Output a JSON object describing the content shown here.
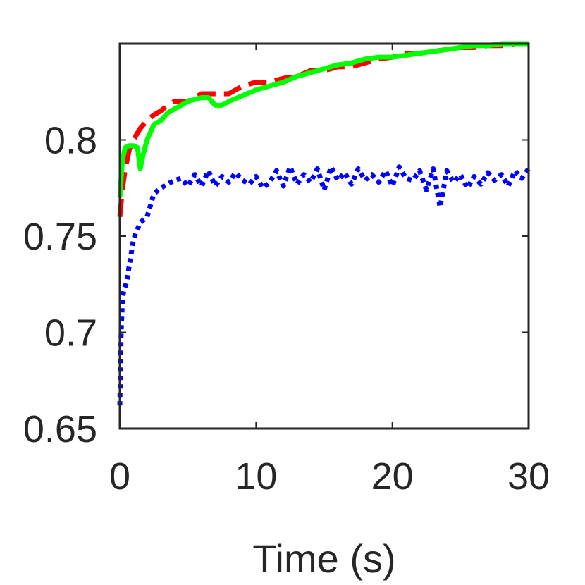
{
  "chart_data": {
    "type": "line",
    "title": "",
    "xlabel": "Time (s)",
    "ylabel": "",
    "xlim": [
      0,
      30
    ],
    "ylim": [
      0.65,
      0.85
    ],
    "xticks": [
      0,
      10,
      20,
      30
    ],
    "xtick_labels": [
      "0",
      "10",
      "20",
      "30"
    ],
    "yticks": [
      0.65,
      0.7,
      0.75,
      0.8
    ],
    "ytick_labels": [
      "0.65",
      "0.7",
      "0.75",
      "0.8"
    ],
    "grid": false,
    "box": true,
    "series": [
      {
        "color": "#ff0000",
        "style": "dashed",
        "x": [
          0,
          0.2,
          0.4,
          0.7,
          1.0,
          1.5,
          2.0,
          2.5,
          3.0,
          3.5,
          4.0,
          5.0,
          6.0,
          7.0,
          8.0,
          9.0,
          10.0,
          11.0,
          12.0,
          13.0,
          14.0,
          15.0,
          16.0,
          17.0,
          18.0,
          19.0,
          20.0,
          21.0,
          22.0,
          23.0,
          24.0,
          25.0,
          26.0,
          27.0,
          28.0,
          29.0,
          30.0
        ],
        "y": [
          0.76,
          0.775,
          0.785,
          0.795,
          0.8,
          0.806,
          0.81,
          0.813,
          0.815,
          0.818,
          0.82,
          0.82,
          0.824,
          0.824,
          0.824,
          0.828,
          0.83,
          0.83,
          0.832,
          0.833,
          0.836,
          0.836,
          0.838,
          0.838,
          0.84,
          0.842,
          0.843,
          0.845,
          0.845,
          0.846,
          0.847,
          0.848,
          0.848,
          0.849,
          0.849,
          0.85,
          0.85
        ]
      },
      {
        "color": "#00ff00",
        "style": "solid",
        "x": [
          0,
          0.2,
          0.4,
          0.7,
          1.0,
          1.3,
          1.5,
          1.7,
          2.0,
          2.5,
          3.0,
          3.5,
          4.0,
          5.0,
          6.0,
          6.5,
          7.0,
          7.5,
          8.0,
          9.0,
          10.0,
          11.0,
          12.0,
          13.0,
          14.0,
          15.0,
          16.0,
          17.0,
          18.0,
          19.0,
          20.0,
          21.0,
          22.0,
          23.0,
          24.0,
          25.0,
          26.0,
          27.0,
          28.0,
          29.0,
          30.0
        ],
        "y": [
          0.77,
          0.79,
          0.796,
          0.797,
          0.797,
          0.796,
          0.785,
          0.792,
          0.8,
          0.808,
          0.81,
          0.814,
          0.816,
          0.82,
          0.822,
          0.822,
          0.818,
          0.818,
          0.82,
          0.823,
          0.826,
          0.828,
          0.83,
          0.833,
          0.835,
          0.837,
          0.839,
          0.84,
          0.842,
          0.843,
          0.843,
          0.844,
          0.845,
          0.846,
          0.847,
          0.848,
          0.849,
          0.849,
          0.85,
          0.85,
          0.85
        ]
      },
      {
        "color": "#0000ff",
        "style": "dotted",
        "x": [
          0,
          0.1,
          0.2,
          0.3,
          0.5,
          0.7,
          1.0,
          1.2,
          1.5,
          2.0,
          2.5,
          3.0,
          3.5,
          4.0,
          4.5,
          5.0,
          5.5,
          6.0,
          6.5,
          7.0,
          7.5,
          8.0,
          8.5,
          9.0,
          9.5,
          10.0,
          10.5,
          11.0,
          11.5,
          12.0,
          12.5,
          13.0,
          13.5,
          14.0,
          14.5,
          15.0,
          15.5,
          16.0,
          16.5,
          17.0,
          17.5,
          18.0,
          18.5,
          19.0,
          19.5,
          20.0,
          20.5,
          21.0,
          21.5,
          22.0,
          22.5,
          23.0,
          23.5,
          24.0,
          24.5,
          25.0,
          25.5,
          26.0,
          26.5,
          27.0,
          27.5,
          28.0,
          28.5,
          29.0,
          29.5,
          30.0
        ],
        "y": [
          0.662,
          0.7,
          0.718,
          0.722,
          0.726,
          0.735,
          0.748,
          0.752,
          0.757,
          0.76,
          0.772,
          0.775,
          0.777,
          0.779,
          0.78,
          0.776,
          0.782,
          0.776,
          0.784,
          0.776,
          0.781,
          0.778,
          0.783,
          0.779,
          0.777,
          0.781,
          0.775,
          0.778,
          0.784,
          0.776,
          0.786,
          0.777,
          0.782,
          0.778,
          0.785,
          0.774,
          0.786,
          0.779,
          0.783,
          0.777,
          0.785,
          0.779,
          0.782,
          0.778,
          0.784,
          0.776,
          0.786,
          0.78,
          0.779,
          0.784,
          0.774,
          0.785,
          0.765,
          0.784,
          0.778,
          0.782,
          0.775,
          0.781,
          0.777,
          0.783,
          0.779,
          0.782,
          0.776,
          0.784,
          0.78,
          0.785
        ]
      }
    ]
  }
}
